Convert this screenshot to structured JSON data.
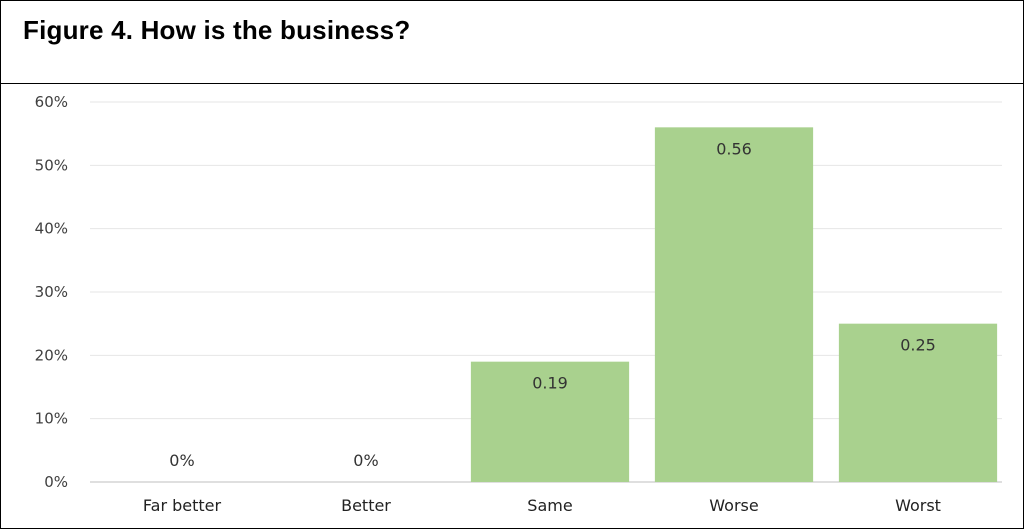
{
  "chart_data": {
    "type": "bar",
    "title": "Figure 4. How is the business?",
    "categories": [
      "Far better",
      "Better",
      "Same",
      "Worse",
      "Worst"
    ],
    "values": [
      0,
      0,
      0.19,
      0.56,
      0.25
    ],
    "data_labels": [
      "0%",
      "0%",
      "0.19",
      "0.56",
      "0.25"
    ],
    "y_ticks": [
      "0%",
      "10%",
      "20%",
      "30%",
      "40%",
      "50%",
      "60%"
    ],
    "ylim": [
      0,
      0.6
    ],
    "grid": true,
    "legend": "none",
    "colors": {
      "bar": "#a9d18e",
      "grid": "#e6e6e6",
      "axis": "#bfbfbf"
    }
  }
}
